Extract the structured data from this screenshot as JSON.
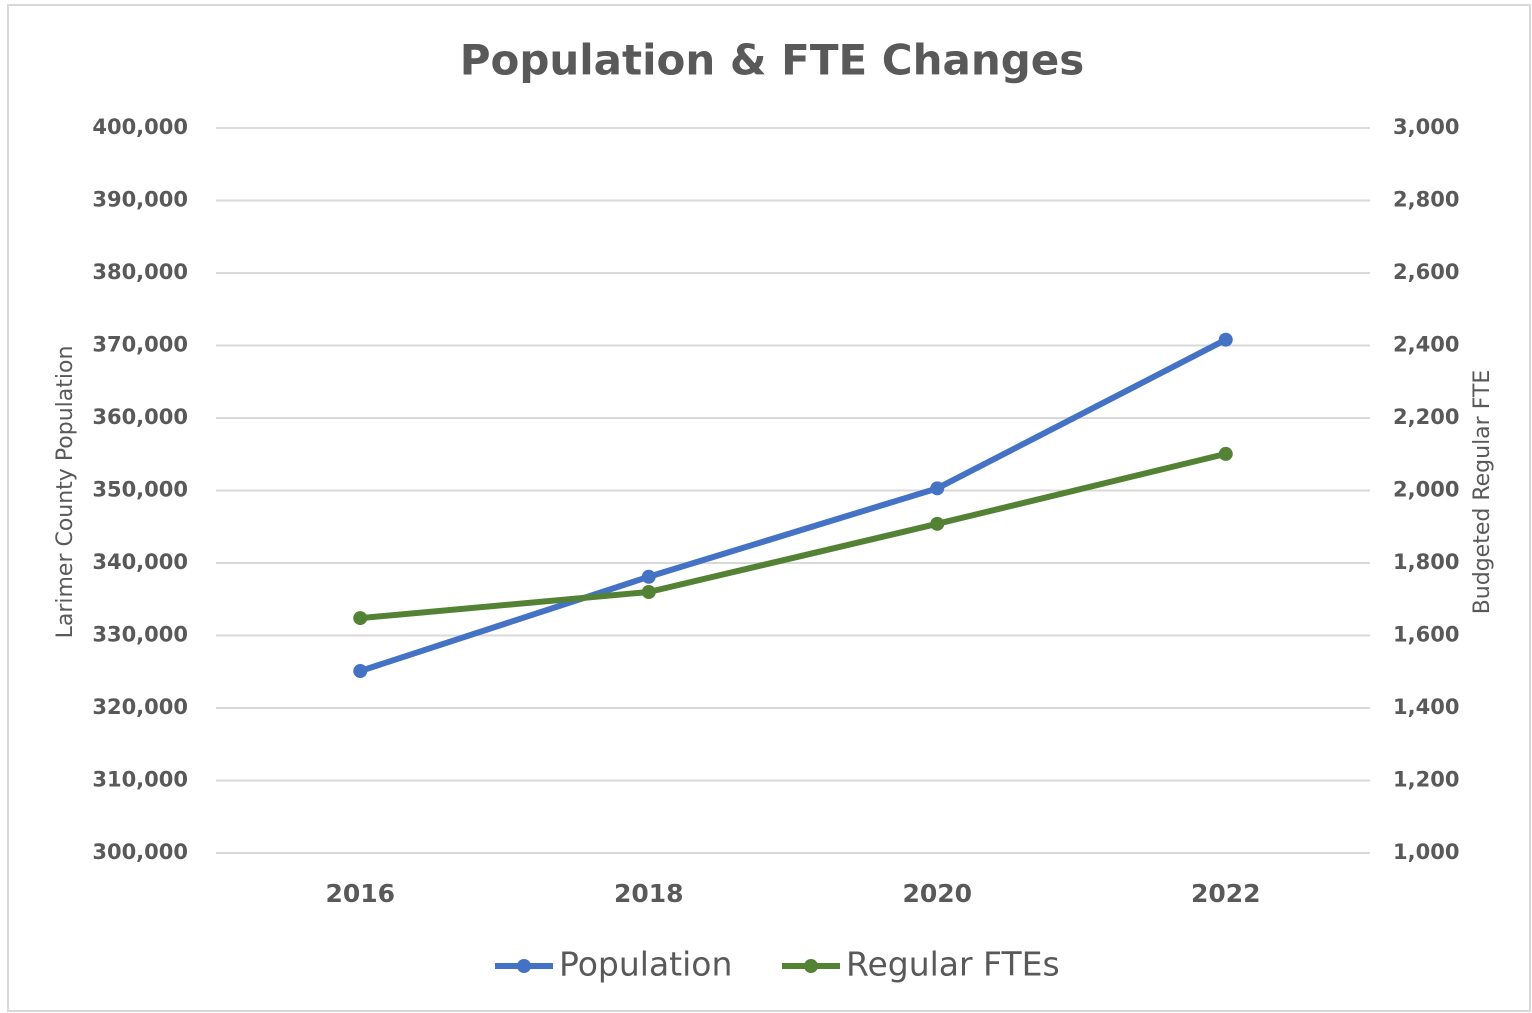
{
  "chart_data": {
    "type": "line",
    "title": "Population & FTE Changes",
    "y_label": "Larimer County Population",
    "y2_label": "Budgeted Regular FTE",
    "categories": [
      "2016",
      "2018",
      "2020",
      "2022"
    ],
    "series": [
      {
        "name": "Population",
        "color": "#4472c4",
        "values": [
          325100,
          338100,
          350300,
          370800
        ]
      },
      {
        "name": "Regular FTEs",
        "color": "#548235",
        "axis": "y2",
        "values": [
          1648,
          1720,
          1908,
          2101
        ]
      }
    ],
    "ylim": [
      300000,
      400000
    ],
    "yticks": [
      {
        "value": 300000,
        "label": "300,000"
      },
      {
        "value": 310000,
        "label": "310,000"
      },
      {
        "value": 320000,
        "label": "320,000"
      },
      {
        "value": 330000,
        "label": "330,000"
      },
      {
        "value": 340000,
        "label": "340,000"
      },
      {
        "value": 350000,
        "label": "350,000"
      },
      {
        "value": 360000,
        "label": "360,000"
      },
      {
        "value": 370000,
        "label": "370,000"
      },
      {
        "value": 380000,
        "label": "380,000"
      },
      {
        "value": 390000,
        "label": "390,000"
      },
      {
        "value": 400000,
        "label": "400,000"
      }
    ],
    "y2lim": [
      1000,
      3000
    ],
    "y2ticks": [
      {
        "value": 1000,
        "label": "1,000"
      },
      {
        "value": 1200,
        "label": "1,200"
      },
      {
        "value": 1400,
        "label": "1,400"
      },
      {
        "value": 1600,
        "label": "1,600"
      },
      {
        "value": 1800,
        "label": "1,800"
      },
      {
        "value": 2000,
        "label": "2,000"
      },
      {
        "value": 2200,
        "label": "2,200"
      },
      {
        "value": 2400,
        "label": "2,400"
      },
      {
        "value": 2600,
        "label": "2,600"
      },
      {
        "value": 2800,
        "label": "2,800"
      },
      {
        "value": 3000,
        "label": "3,000"
      }
    ],
    "grid": true,
    "legend": "bottom"
  }
}
